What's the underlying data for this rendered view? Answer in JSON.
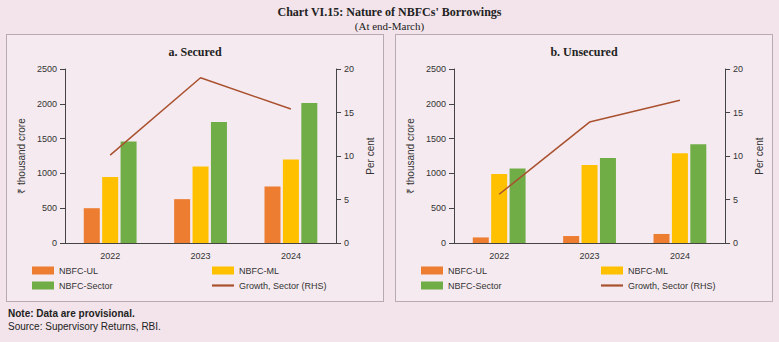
{
  "title": "Chart VI.15: Nature of NBFCs' Borrowings",
  "subtitle": "(At end-March)",
  "note": "Note: Data are provisional.",
  "source": "Source: Supervisory Returns, RBI.",
  "chart_data": [
    {
      "type": "bar",
      "title": "a. Secured",
      "categories": [
        "2022",
        "2023",
        "2024"
      ],
      "y_label": "₹ thousand crore",
      "y2_label": "Per cent",
      "ylim": [
        0,
        2500
      ],
      "yticks": [
        0,
        500,
        1000,
        1500,
        2000,
        2500
      ],
      "y2lim": [
        0,
        20
      ],
      "y2ticks": [
        0,
        5,
        10,
        15,
        20
      ],
      "legend": "bottom",
      "grid": false,
      "series": [
        {
          "name": "NBFC-UL",
          "color": "#ed7d31",
          "values": [
            500,
            630,
            810
          ]
        },
        {
          "name": "NBFC-ML",
          "color": "#ffc000",
          "values": [
            950,
            1100,
            1200
          ]
        },
        {
          "name": "NBFC-Sector",
          "color": "#70ad47",
          "values": [
            1460,
            1740,
            2010
          ]
        },
        {
          "name": "Growth, Sector (RHS)",
          "type": "line",
          "axis": "y2",
          "color": "#a9512f",
          "values": [
            10.1,
            19.0,
            15.4
          ]
        }
      ]
    },
    {
      "type": "bar",
      "title": "b. Unsecured",
      "categories": [
        "2022",
        "2023",
        "2024"
      ],
      "y_label": "₹ thousand crore",
      "y2_label": "Per cent",
      "ylim": [
        0,
        2500
      ],
      "yticks": [
        0,
        500,
        1000,
        1500,
        2000,
        2500
      ],
      "y2lim": [
        0,
        20
      ],
      "y2ticks": [
        0,
        5,
        10,
        15,
        20
      ],
      "legend": "bottom",
      "grid": false,
      "series": [
        {
          "name": "NBFC-UL",
          "color": "#ed7d31",
          "values": [
            80,
            100,
            130
          ]
        },
        {
          "name": "NBFC-ML",
          "color": "#ffc000",
          "values": [
            990,
            1120,
            1290
          ]
        },
        {
          "name": "NBFC-Sector",
          "color": "#70ad47",
          "values": [
            1070,
            1220,
            1420
          ]
        },
        {
          "name": "Growth, Sector (RHS)",
          "type": "line",
          "axis": "y2",
          "color": "#a9512f",
          "values": [
            5.6,
            13.9,
            16.4
          ]
        }
      ]
    }
  ]
}
